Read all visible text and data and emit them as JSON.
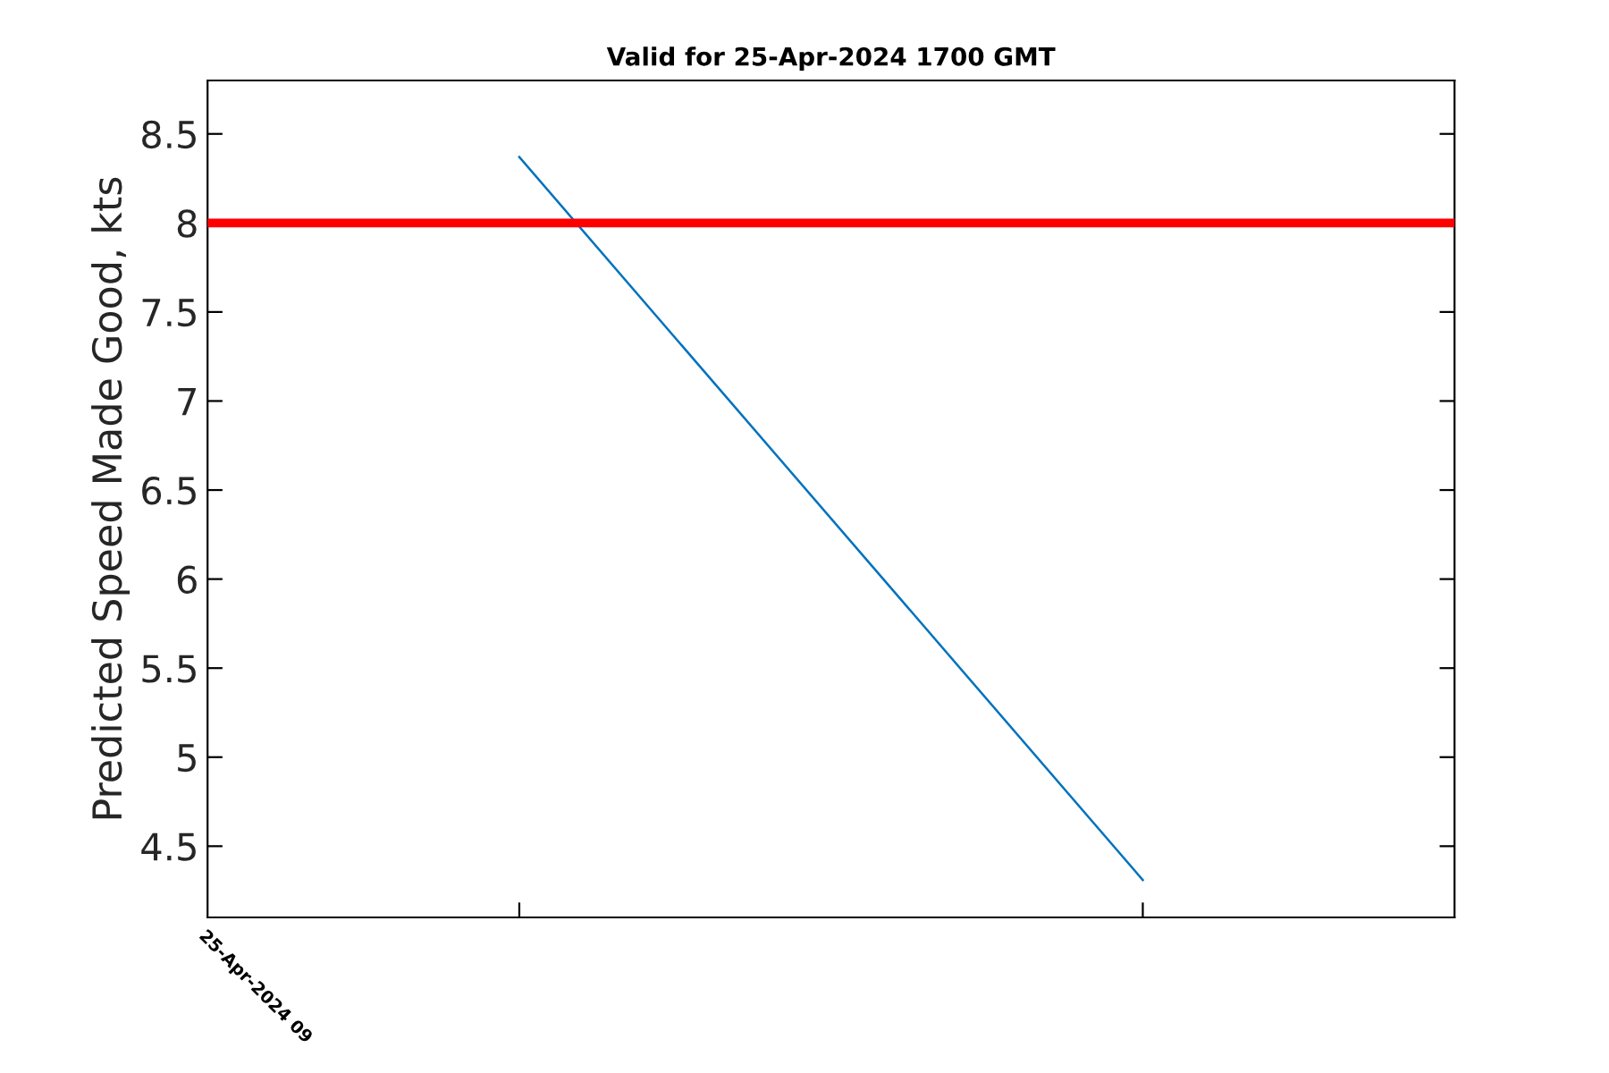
{
  "chart_data": {
    "type": "line",
    "title": "Valid for 25-Apr-2024 1700 GMT",
    "ylabel": "Predicted Speed Made Good, kts",
    "categories": [
      null,
      null
    ],
    "series": [
      {
        "color": "#0072bd",
        "values": [
          8.37,
          4.31
        ]
      }
    ],
    "ylim": [
      4.1,
      8.8
    ],
    "yticks": [
      4.5,
      5,
      5.5,
      6,
      6.5,
      7,
      7.5,
      8,
      8.5
    ],
    "ref_lines": [
      {
        "axis": "y",
        "value": 8,
        "color": "#ff0000"
      }
    ],
    "annotations": [
      "25-Apr-2024 09"
    ],
    "grid": false,
    "legend": false
  }
}
